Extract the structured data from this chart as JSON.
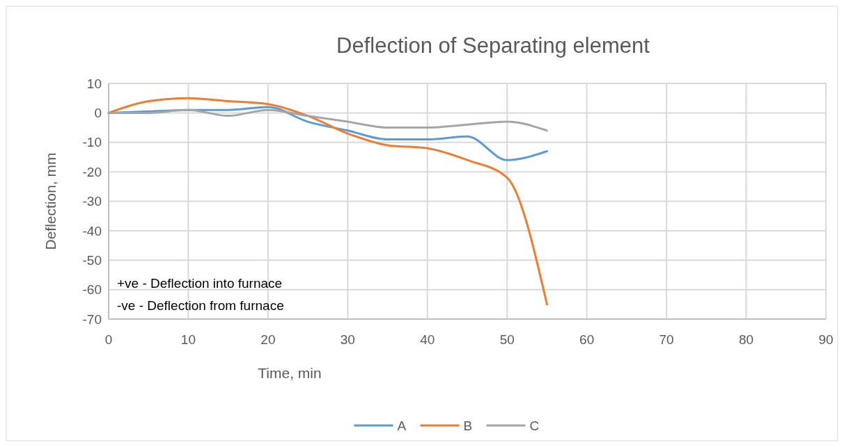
{
  "chart_data": {
    "type": "line",
    "title": "Deflection of Separating element",
    "xlabel": "Time, min",
    "ylabel": "Deflection, mm",
    "x": [
      0,
      5,
      10,
      15,
      20,
      25,
      30,
      35,
      40,
      45,
      50,
      55
    ],
    "series": [
      {
        "name": "A",
        "color": "#5b9bd5",
        "values": [
          0,
          0.5,
          1,
          1,
          2,
          -3,
          -6,
          -9,
          -9,
          -8,
          -16,
          -13
        ]
      },
      {
        "name": "B",
        "color": "#ed7d31",
        "values": [
          0,
          4,
          5,
          4,
          3,
          -1,
          -7,
          -11,
          -12,
          -16,
          -22,
          -65
        ]
      },
      {
        "name": "C",
        "color": "#a5a5a5",
        "values": [
          0,
          0,
          1,
          -1,
          1,
          -1,
          -3,
          -5,
          -5,
          -4,
          -3,
          -6
        ]
      }
    ],
    "xlim": [
      0,
      90
    ],
    "xticks": [
      0,
      10,
      20,
      30,
      40,
      50,
      60,
      70,
      80,
      90
    ],
    "ylim": [
      -70,
      10
    ],
    "yticks": [
      -70,
      -60,
      -50,
      -40,
      -30,
      -20,
      -10,
      0,
      10
    ],
    "grid": true,
    "legend": "bottom",
    "marker": "none",
    "line_style": "solid",
    "annotations": [
      "+ve - Deflection into furnace",
      "-ve - Deflection from furnace"
    ]
  }
}
